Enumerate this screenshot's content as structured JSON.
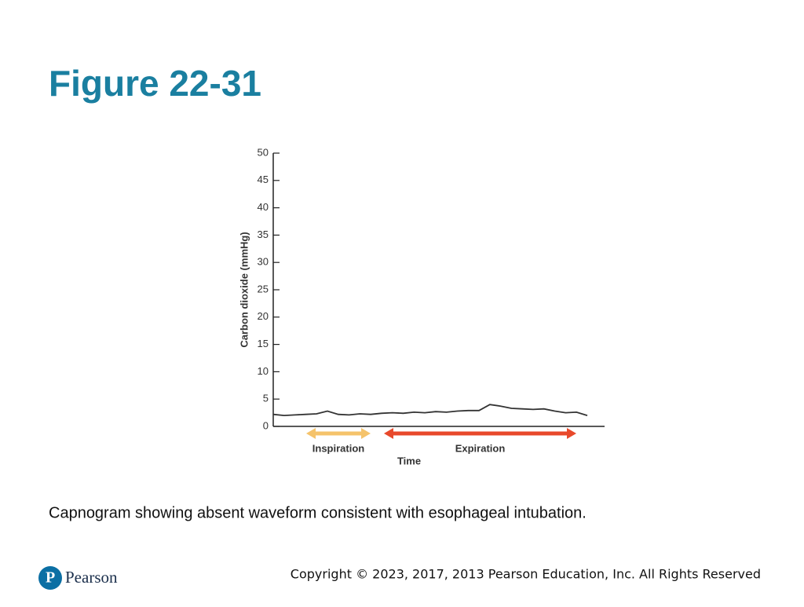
{
  "header": {
    "title": "Figure 22-31"
  },
  "chart_data": {
    "type": "line",
    "ylabel": "Carbon dioxide (mmHg)",
    "xlabel": "Time",
    "categories": [
      null,
      null,
      null,
      null,
      null,
      null,
      null,
      null,
      null,
      null,
      null,
      null,
      null,
      null,
      null,
      null,
      null,
      null,
      null,
      null,
      null,
      null,
      null,
      null,
      null,
      null,
      null,
      null,
      null,
      null
    ],
    "values": [
      2.2,
      2.0,
      2.1,
      2.2,
      2.3,
      2.8,
      2.2,
      2.1,
      2.3,
      2.2,
      2.4,
      2.5,
      2.4,
      2.6,
      2.5,
      2.7,
      2.6,
      2.8,
      2.9,
      2.9,
      4.0,
      3.7,
      3.3,
      3.2,
      3.1,
      3.2,
      2.8,
      2.5,
      2.6,
      2.0
    ],
    "color": "#333333",
    "ylim": [
      0,
      50
    ],
    "yticks": [
      0,
      5,
      10,
      15,
      20,
      25,
      30,
      35,
      40,
      45,
      50
    ],
    "annotations": [
      {
        "text": "Inspiration",
        "color": "#f5c36b"
      },
      {
        "text": "Expiration",
        "color": "#e8492b"
      }
    ]
  },
  "caption": "Capnogram showing absent waveform consistent with esophageal intubation.",
  "footer": {
    "brand": "Pearson",
    "copyright": "Copyright © 2023, 2017, 2013 Pearson Education, Inc. All Rights Reserved"
  }
}
